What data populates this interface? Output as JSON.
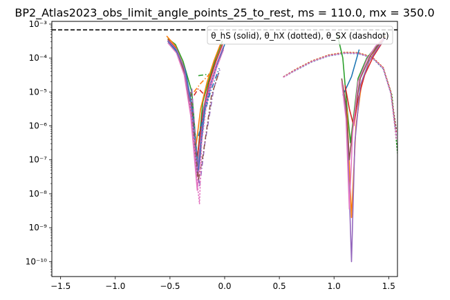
{
  "chart_data": {
    "type": "line",
    "title": "BP2_Atlas2023_obs_limit_angle_points_25_to_rest, ms = 110.0, mx = 350.0",
    "xlabel": "",
    "ylabel": "",
    "xlim": [
      -1.58,
      1.58
    ],
    "ylim_log10": [
      -10.44,
      -2.92
    ],
    "y_scale": "log",
    "grid": false,
    "legend_text": "θ_hS (solid), θ_hX (dotted), θ_SX (dashdot)",
    "legend_placement": "top-right",
    "x_ticks": [
      {
        "value": -1.5,
        "label": "−1.5"
      },
      {
        "value": -1.0,
        "label": "−1.0"
      },
      {
        "value": -0.5,
        "label": "−0.5"
      },
      {
        "value": 0.0,
        "label": "0.0"
      },
      {
        "value": 0.5,
        "label": "0.5"
      },
      {
        "value": 1.0,
        "label": "1.0"
      },
      {
        "value": 1.5,
        "label": "1.5"
      }
    ],
    "y_ticks": [
      {
        "exp": -10,
        "label": "10⁻¹⁰"
      },
      {
        "exp": -9,
        "label": "10⁻⁹"
      },
      {
        "exp": -8,
        "label": "10⁻⁸"
      },
      {
        "exp": -7,
        "label": "10⁻⁷"
      },
      {
        "exp": -6,
        "label": "10⁻⁶"
      },
      {
        "exp": -5,
        "label": "10⁻⁵"
      },
      {
        "exp": -4,
        "label": "10⁻⁴"
      },
      {
        "exp": -3,
        "label": "10⁻³"
      }
    ],
    "reference_line": {
      "y_log10": -3.17,
      "color": "#000000",
      "dash": "dashed"
    },
    "colors": {
      "blue": "#1f77b4",
      "orange": "#ff7f0e",
      "green": "#2ca02c",
      "red": "#d62728",
      "purple": "#9467bd",
      "brown": "#8c564b",
      "pink": "#e377c2"
    },
    "series": [
      {
        "style": "solid",
        "color": "#2ca02c",
        "points": [
          [
            -0.52,
            -3.42
          ],
          [
            -0.45,
            -3.6
          ],
          [
            -0.38,
            -4.1
          ],
          [
            -0.3,
            -5.0
          ],
          [
            -0.25,
            -7.0
          ],
          [
            -0.2,
            -5.3
          ],
          [
            -0.14,
            -4.6
          ],
          [
            -0.08,
            -4.0
          ],
          [
            -0.02,
            -3.5
          ]
        ]
      },
      {
        "style": "solid",
        "color": "#ff7f0e",
        "points": [
          [
            -0.53,
            -3.35
          ],
          [
            -0.45,
            -3.65
          ],
          [
            -0.38,
            -4.2
          ],
          [
            -0.32,
            -5.2
          ],
          [
            -0.27,
            -6.8
          ],
          [
            -0.22,
            -5.5
          ],
          [
            -0.16,
            -4.7
          ],
          [
            -0.1,
            -4.1
          ],
          [
            -0.04,
            -3.6
          ]
        ]
      },
      {
        "style": "solid",
        "color": "#d62728",
        "points": [
          [
            -0.52,
            -3.45
          ],
          [
            -0.45,
            -3.7
          ],
          [
            -0.38,
            -4.3
          ],
          [
            -0.32,
            -5.3
          ],
          [
            -0.26,
            -7.2
          ],
          [
            -0.2,
            -5.6
          ],
          [
            -0.14,
            -4.7
          ],
          [
            -0.08,
            -4.1
          ],
          [
            -0.02,
            -3.6
          ]
        ]
      },
      {
        "style": "solid",
        "color": "#8c564b",
        "points": [
          [
            -0.52,
            -3.5
          ],
          [
            -0.44,
            -3.8
          ],
          [
            -0.37,
            -4.4
          ],
          [
            -0.31,
            -5.5
          ],
          [
            -0.25,
            -7.5
          ],
          [
            -0.19,
            -5.6
          ],
          [
            -0.13,
            -4.8
          ],
          [
            -0.07,
            -4.2
          ],
          [
            -0.01,
            -3.7
          ]
        ]
      },
      {
        "style": "solid",
        "color": "#e377c2",
        "points": [
          [
            -0.52,
            -3.55
          ],
          [
            -0.44,
            -3.85
          ],
          [
            -0.37,
            -4.5
          ],
          [
            -0.31,
            -5.7
          ],
          [
            -0.25,
            -7.9
          ],
          [
            -0.19,
            -5.7
          ],
          [
            -0.13,
            -4.9
          ],
          [
            -0.07,
            -4.25
          ],
          [
            -0.01,
            -3.75
          ]
        ]
      },
      {
        "style": "solid",
        "color": "#1f77b4",
        "points": [
          [
            -0.52,
            -3.5
          ],
          [
            -0.44,
            -3.8
          ],
          [
            -0.36,
            -4.35
          ],
          [
            -0.3,
            -5.4
          ],
          [
            -0.24,
            -7.3
          ],
          [
            -0.18,
            -5.5
          ],
          [
            -0.12,
            -4.7
          ],
          [
            -0.06,
            -4.1
          ],
          [
            0.0,
            -3.6
          ]
        ]
      },
      {
        "style": "solid",
        "color": "#9467bd",
        "points": [
          [
            -0.52,
            -3.48
          ],
          [
            -0.44,
            -3.75
          ],
          [
            -0.37,
            -4.3
          ],
          [
            -0.31,
            -5.4
          ],
          [
            -0.25,
            -7.4
          ],
          [
            -0.19,
            -5.5
          ],
          [
            -0.13,
            -4.75
          ],
          [
            -0.07,
            -4.15
          ],
          [
            -0.01,
            -3.65
          ]
        ]
      },
      {
        "style": "dashdot",
        "color": "#2ca02c",
        "points": [
          [
            -0.24,
            -4.52
          ],
          [
            -0.13,
            -4.47
          ]
        ]
      },
      {
        "style": "dashdot",
        "color": "#ff7f0e",
        "points": [
          [
            -0.28,
            -5.0
          ],
          [
            -0.22,
            -4.75
          ],
          [
            -0.13,
            -4.45
          ]
        ]
      },
      {
        "style": "dashdot",
        "color": "#1f77b4",
        "points": [
          [
            -0.24,
            -6.3
          ],
          [
            -0.13,
            -5.0
          ],
          [
            -0.05,
            -4.3
          ]
        ]
      },
      {
        "style": "dashdot",
        "color": "#d62728",
        "points": [
          [
            -0.28,
            -5.1
          ],
          [
            -0.24,
            -4.9
          ],
          [
            -0.18,
            -5.1
          ]
        ]
      },
      {
        "style": "dashdot",
        "color": "#9467bd",
        "points": [
          [
            -0.3,
            -4.9
          ],
          [
            -0.26,
            -6.8
          ],
          [
            -0.23,
            -7.8
          ],
          [
            -0.18,
            -6.5
          ],
          [
            -0.1,
            -4.9
          ],
          [
            -0.04,
            -4.3
          ]
        ]
      },
      {
        "style": "dashdot",
        "color": "#8c564b",
        "points": [
          [
            -0.31,
            -5.0
          ],
          [
            -0.27,
            -6.6
          ],
          [
            -0.24,
            -7.6
          ],
          [
            -0.2,
            -6.9
          ],
          [
            -0.12,
            -5.1
          ],
          [
            -0.05,
            -4.4
          ]
        ]
      },
      {
        "style": "dotted",
        "color": "#e377c2",
        "points": [
          [
            -0.32,
            -5.3
          ],
          [
            -0.28,
            -6.5
          ],
          [
            -0.25,
            -7.7
          ],
          [
            -0.23,
            -8.3
          ],
          [
            -0.21,
            -6.5
          ],
          [
            -0.16,
            -5.2
          ],
          [
            -0.1,
            -4.5
          ],
          [
            -0.04,
            -4.0
          ]
        ]
      },
      {
        "style": "dotted",
        "color": "#2ca02c",
        "points": [
          [
            0.54,
            -4.55
          ],
          [
            0.65,
            -4.35
          ],
          [
            0.8,
            -4.1
          ],
          [
            0.95,
            -3.93
          ],
          [
            1.1,
            -3.85
          ],
          [
            1.22,
            -3.85
          ],
          [
            1.35,
            -3.98
          ],
          [
            1.45,
            -4.3
          ],
          [
            1.53,
            -5.1
          ],
          [
            1.58,
            -6.8
          ]
        ]
      },
      {
        "style": "dotted",
        "color": "#ff7f0e",
        "points": [
          [
            0.54,
            -4.55
          ],
          [
            0.65,
            -4.33
          ],
          [
            0.8,
            -4.08
          ],
          [
            0.95,
            -3.91
          ],
          [
            1.1,
            -3.83
          ],
          [
            1.22,
            -3.84
          ],
          [
            1.35,
            -3.97
          ],
          [
            1.45,
            -4.28
          ],
          [
            1.52,
            -5.0
          ],
          [
            1.56,
            -6.0
          ]
        ]
      },
      {
        "style": "dotted",
        "color": "#1f77b4",
        "points": [
          [
            0.54,
            -4.56
          ],
          [
            0.65,
            -4.36
          ],
          [
            0.8,
            -4.11
          ],
          [
            0.95,
            -3.94
          ],
          [
            1.1,
            -3.86
          ],
          [
            1.22,
            -3.87
          ],
          [
            1.35,
            -4.0
          ],
          [
            1.45,
            -4.32
          ],
          [
            1.52,
            -5.05
          ],
          [
            1.56,
            -6.1
          ]
        ]
      },
      {
        "style": "dotted",
        "color": "#d62728",
        "points": [
          [
            0.54,
            -4.55
          ],
          [
            0.65,
            -4.34
          ],
          [
            0.8,
            -4.09
          ],
          [
            0.95,
            -3.92
          ],
          [
            1.1,
            -3.84
          ],
          [
            1.22,
            -3.85
          ],
          [
            1.35,
            -3.98
          ],
          [
            1.45,
            -4.29
          ],
          [
            1.52,
            -5.02
          ],
          [
            1.57,
            -6.2
          ]
        ]
      },
      {
        "style": "dotted",
        "color": "#9467bd",
        "points": [
          [
            0.54,
            -4.56
          ],
          [
            0.65,
            -4.35
          ],
          [
            0.8,
            -4.1
          ],
          [
            0.95,
            -3.93
          ],
          [
            1.1,
            -3.85
          ],
          [
            1.22,
            -3.86
          ],
          [
            1.35,
            -3.99
          ],
          [
            1.45,
            -4.3
          ],
          [
            1.52,
            -5.03
          ],
          [
            1.57,
            -6.3
          ]
        ]
      },
      {
        "style": "dotted",
        "color": "#8c564b",
        "points": [
          [
            0.54,
            -4.55
          ],
          [
            0.65,
            -4.34
          ],
          [
            0.8,
            -4.09
          ],
          [
            0.95,
            -3.92
          ],
          [
            1.1,
            -3.84
          ],
          [
            1.22,
            -3.85
          ],
          [
            1.35,
            -3.98
          ],
          [
            1.45,
            -4.29
          ],
          [
            1.52,
            -5.02
          ],
          [
            1.57,
            -6.1
          ]
        ]
      },
      {
        "style": "dotted",
        "color": "#e377c2",
        "points": [
          [
            0.54,
            -4.56
          ],
          [
            0.65,
            -4.35
          ],
          [
            0.8,
            -4.1
          ],
          [
            0.95,
            -3.93
          ],
          [
            1.1,
            -3.85
          ],
          [
            1.22,
            -3.86
          ],
          [
            1.35,
            -3.99
          ],
          [
            1.45,
            -4.3
          ],
          [
            1.52,
            -5.05
          ],
          [
            1.57,
            -6.4
          ]
        ]
      },
      {
        "style": "solid",
        "color": "#2ca02c",
        "points": [
          [
            1.03,
            -3.3
          ],
          [
            1.08,
            -4.0
          ],
          [
            1.12,
            -5.5
          ],
          [
            1.15,
            -6.5
          ],
          [
            1.18,
            -5.7
          ],
          [
            1.22,
            -4.6
          ],
          [
            1.3,
            -4.0
          ],
          [
            1.4,
            -3.6
          ],
          [
            1.47,
            -3.35
          ]
        ]
      },
      {
        "style": "solid",
        "color": "#1f77b4",
        "points": [
          [
            1.08,
            -5.1
          ],
          [
            1.16,
            -4.55
          ],
          [
            1.23,
            -3.75
          ]
        ]
      },
      {
        "style": "solid",
        "color": "#ff7f0e",
        "points": [
          [
            1.08,
            -4.9
          ],
          [
            1.12,
            -5.6
          ],
          [
            1.16,
            -8.7
          ],
          [
            1.2,
            -6.0
          ],
          [
            1.25,
            -4.8
          ],
          [
            1.32,
            -4.1
          ],
          [
            1.4,
            -3.65
          ],
          [
            1.47,
            -3.35
          ]
        ]
      },
      {
        "style": "solid",
        "color": "#d62728",
        "points": [
          [
            1.1,
            -4.8
          ],
          [
            1.14,
            -5.5
          ],
          [
            1.18,
            -6.0
          ],
          [
            1.22,
            -5.2
          ],
          [
            1.28,
            -4.5
          ],
          [
            1.36,
            -3.95
          ],
          [
            1.44,
            -3.55
          ]
        ]
      },
      {
        "style": "solid",
        "color": "#9467bd",
        "points": [
          [
            1.08,
            -4.8
          ],
          [
            1.12,
            -6.0
          ],
          [
            1.16,
            -10.0
          ],
          [
            1.19,
            -6.5
          ],
          [
            1.24,
            -4.8
          ],
          [
            1.32,
            -4.1
          ],
          [
            1.4,
            -3.7
          ],
          [
            1.47,
            -3.4
          ]
        ]
      },
      {
        "style": "solid",
        "color": "#8c564b",
        "points": [
          [
            1.07,
            -4.6
          ],
          [
            1.11,
            -5.4
          ],
          [
            1.14,
            -7.0
          ],
          [
            1.18,
            -5.8
          ],
          [
            1.24,
            -4.6
          ],
          [
            1.33,
            -3.95
          ],
          [
            1.42,
            -3.55
          ]
        ]
      },
      {
        "style": "solid",
        "color": "#e377c2",
        "points": [
          [
            1.07,
            -4.7
          ],
          [
            1.11,
            -5.8
          ],
          [
            1.14,
            -8.45
          ],
          [
            1.17,
            -6.2
          ],
          [
            1.22,
            -4.7
          ],
          [
            1.3,
            -4.05
          ],
          [
            1.38,
            -3.65
          ],
          [
            1.46,
            -3.4
          ]
        ]
      }
    ]
  }
}
